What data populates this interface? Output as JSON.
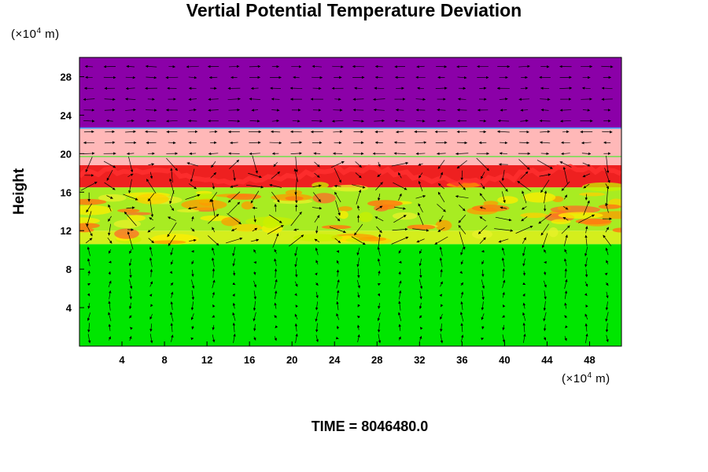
{
  "chart_data": {
    "type": "heatmap",
    "title": "Vertial Potential Temperature Deviation",
    "ylabel": "Height",
    "xlabel": "",
    "x_unit": {
      "prefix": "(×10",
      "exp": "4",
      "suffix": " m)"
    },
    "y_unit": {
      "prefix": "(×10",
      "exp": "4",
      "suffix": " m)"
    },
    "xlim": [
      0,
      51
    ],
    "ylim": [
      0,
      30
    ],
    "x_ticks": [
      4,
      8,
      12,
      16,
      20,
      24,
      28,
      32,
      36,
      40,
      44,
      48
    ],
    "y_ticks": [
      4,
      8,
      12,
      16,
      20,
      24,
      28
    ],
    "layers": [
      {
        "from": 0,
        "to": 10.6,
        "color": "#00e600"
      },
      {
        "from": 10.6,
        "to": 12.0,
        "color": "#d4ee1c"
      },
      {
        "from": 12.0,
        "to": 16.5,
        "color": "#a8ec22"
      },
      {
        "from": 16.5,
        "to": 18.8,
        "color": "#ee2020"
      },
      {
        "from": 18.8,
        "to": 22.7,
        "color": "#ffb8b8"
      },
      {
        "from": 22.7,
        "to": 30,
        "color": "#8b00a8"
      }
    ],
    "overlay": "wind vectors",
    "grid": false
  },
  "footer": {
    "time_label": "TIME = 8046480.0"
  }
}
